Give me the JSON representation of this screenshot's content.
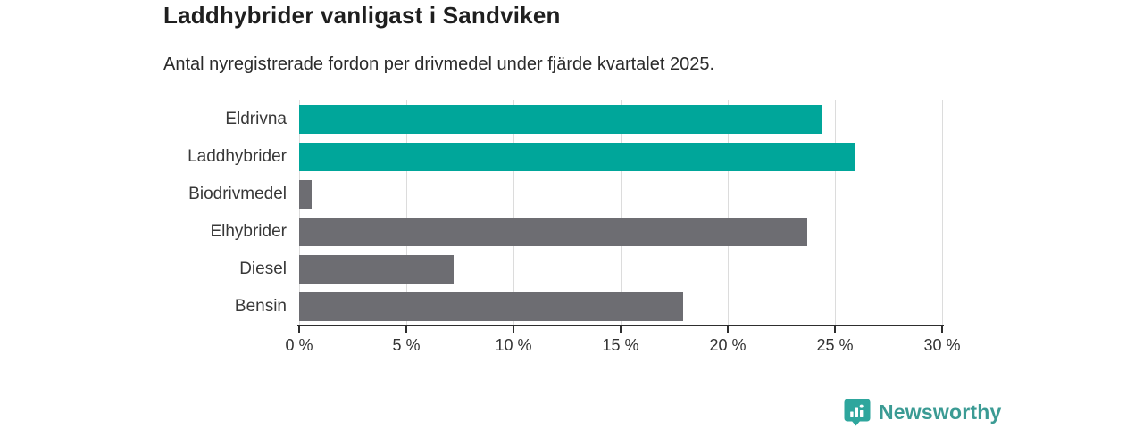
{
  "header": {
    "title": "Laddhybrider vanligast i Sandviken",
    "subtitle": "Antal nyregistrerade fordon per drivmedel under fjärde kvartalet 2025."
  },
  "chart_data": {
    "type": "bar",
    "orientation": "horizontal",
    "title": "Laddhybrider vanligast i Sandviken",
    "subtitle": "Antal nyregistrerade fordon per drivmedel under fjärde kvartalet 2025.",
    "categories": [
      "Eldrivna",
      "Laddhybrider",
      "Biodrivmedel",
      "Elhybrider",
      "Diesel",
      "Bensin"
    ],
    "values": [
      24.4,
      25.9,
      0.6,
      23.7,
      7.2,
      17.9
    ],
    "unit": "%",
    "xlim": [
      0,
      30
    ],
    "x_ticks": [
      0,
      5,
      10,
      15,
      20,
      25,
      30
    ],
    "x_tick_labels": [
      "0 %",
      "5 %",
      "10 %",
      "15 %",
      "20 %",
      "25 %",
      "30 %"
    ],
    "grid": true,
    "legend": "none",
    "colors": {
      "highlight": "#00a69a",
      "default": "#6d6d72",
      "highlighted_categories": [
        "Eldrivna",
        "Laddhybrider"
      ]
    }
  },
  "footer": {
    "brand": "Newsworthy",
    "brand_color": "#3b9b94",
    "logo_icon": "bar-chart-pin-icon"
  }
}
